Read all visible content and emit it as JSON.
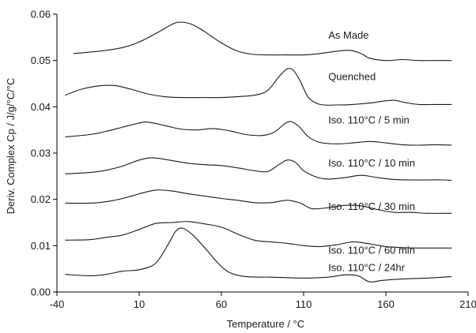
{
  "chart_data": {
    "type": "line",
    "title": "",
    "xlabel": "Temperature / °C",
    "ylabel": "Deriv. Complex Cp / J/g/°C/°C",
    "xlim": [
      -40,
      210
    ],
    "ylim": [
      0,
      0.06
    ],
    "x_ticks": [
      -40,
      10,
      60,
      110,
      160,
      210
    ],
    "x_tick_labels": [
      "-40",
      "10",
      "60",
      "110",
      "160",
      "210"
    ],
    "y_ticks": [
      0,
      0.01,
      0.02,
      0.03,
      0.04,
      0.05,
      0.06
    ],
    "y_tick_labels": [
      "0.00",
      "0.01",
      "0.02",
      "0.03",
      "0.04",
      "0.05",
      "0.06"
    ],
    "grid": false,
    "legend": "inline labels at right",
    "series": [
      {
        "name": "As Made",
        "label_at": [
          125,
          0.0547
        ],
        "points": [
          [
            -30,
            0.0515
          ],
          [
            -20,
            0.0518
          ],
          [
            -10,
            0.0522
          ],
          [
            0,
            0.0528
          ],
          [
            10,
            0.054
          ],
          [
            20,
            0.0558
          ],
          [
            30,
            0.0578
          ],
          [
            35,
            0.0583
          ],
          [
            42,
            0.0578
          ],
          [
            50,
            0.0562
          ],
          [
            60,
            0.0538
          ],
          [
            70,
            0.052
          ],
          [
            80,
            0.0513
          ],
          [
            90,
            0.0512
          ],
          [
            100,
            0.0512
          ],
          [
            110,
            0.0512
          ],
          [
            120,
            0.0515
          ],
          [
            130,
            0.052
          ],
          [
            138,
            0.0522
          ],
          [
            145,
            0.0515
          ],
          [
            150,
            0.0505
          ],
          [
            160,
            0.05
          ],
          [
            170,
            0.0502
          ],
          [
            180,
            0.05
          ],
          [
            190,
            0.05
          ],
          [
            200,
            0.05
          ]
        ]
      },
      {
        "name": "Quenched",
        "label_at": [
          125,
          0.0458
        ],
        "points": [
          [
            -35,
            0.0425
          ],
          [
            -25,
            0.0438
          ],
          [
            -15,
            0.0445
          ],
          [
            -5,
            0.0446
          ],
          [
            5,
            0.0438
          ],
          [
            15,
            0.0428
          ],
          [
            25,
            0.0422
          ],
          [
            35,
            0.042
          ],
          [
            50,
            0.042
          ],
          [
            60,
            0.042
          ],
          [
            70,
            0.0422
          ],
          [
            80,
            0.0425
          ],
          [
            88,
            0.0435
          ],
          [
            95,
            0.0465
          ],
          [
            100,
            0.0482
          ],
          [
            104,
            0.0478
          ],
          [
            108,
            0.0455
          ],
          [
            113,
            0.042
          ],
          [
            120,
            0.0405
          ],
          [
            130,
            0.0404
          ],
          [
            140,
            0.0405
          ],
          [
            150,
            0.0408
          ],
          [
            158,
            0.0412
          ],
          [
            165,
            0.0414
          ],
          [
            172,
            0.0409
          ],
          [
            180,
            0.0405
          ],
          [
            190,
            0.0405
          ],
          [
            200,
            0.0405
          ]
        ]
      },
      {
        "name": "Iso. 110°C / 5 min",
        "label_at": [
          125,
          0.0364
        ],
        "points": [
          [
            -35,
            0.0335
          ],
          [
            -20,
            0.034
          ],
          [
            -10,
            0.0347
          ],
          [
            0,
            0.0356
          ],
          [
            10,
            0.0365
          ],
          [
            15,
            0.0367
          ],
          [
            25,
            0.036
          ],
          [
            35,
            0.0352
          ],
          [
            45,
            0.035
          ],
          [
            55,
            0.0353
          ],
          [
            65,
            0.0348
          ],
          [
            75,
            0.034
          ],
          [
            85,
            0.0338
          ],
          [
            92,
            0.0345
          ],
          [
            98,
            0.0362
          ],
          [
            102,
            0.0368
          ],
          [
            107,
            0.0358
          ],
          [
            113,
            0.0335
          ],
          [
            120,
            0.0323
          ],
          [
            130,
            0.032
          ],
          [
            140,
            0.0322
          ],
          [
            150,
            0.0325
          ],
          [
            160,
            0.0322
          ],
          [
            170,
            0.0318
          ],
          [
            180,
            0.0317
          ],
          [
            190,
            0.0318
          ],
          [
            200,
            0.0317
          ]
        ]
      },
      {
        "name": "Iso. 110°C / 10 min",
        "label_at": [
          125,
          0.0271
        ],
        "points": [
          [
            -35,
            0.0255
          ],
          [
            -20,
            0.0258
          ],
          [
            -10,
            0.0263
          ],
          [
            0,
            0.0272
          ],
          [
            10,
            0.0285
          ],
          [
            18,
            0.029
          ],
          [
            28,
            0.0285
          ],
          [
            40,
            0.0278
          ],
          [
            50,
            0.0275
          ],
          [
            60,
            0.0273
          ],
          [
            70,
            0.0268
          ],
          [
            80,
            0.0262
          ],
          [
            88,
            0.026
          ],
          [
            95,
            0.0275
          ],
          [
            100,
            0.0285
          ],
          [
            105,
            0.028
          ],
          [
            110,
            0.0262
          ],
          [
            118,
            0.0248
          ],
          [
            125,
            0.0244
          ],
          [
            135,
            0.0247
          ],
          [
            145,
            0.0252
          ],
          [
            155,
            0.0247
          ],
          [
            165,
            0.0243
          ],
          [
            175,
            0.0242
          ],
          [
            185,
            0.0242
          ],
          [
            195,
            0.0242
          ],
          [
            200,
            0.0241
          ]
        ]
      },
      {
        "name": "Iso. 110°C / 30 min",
        "label_at": [
          125,
          0.0177
        ],
        "points": [
          [
            -35,
            0.0192
          ],
          [
            -20,
            0.0192
          ],
          [
            -10,
            0.0195
          ],
          [
            0,
            0.0202
          ],
          [
            10,
            0.0212
          ],
          [
            20,
            0.022
          ],
          [
            30,
            0.0218
          ],
          [
            40,
            0.0212
          ],
          [
            50,
            0.0207
          ],
          [
            60,
            0.0202
          ],
          [
            70,
            0.0198
          ],
          [
            80,
            0.0193
          ],
          [
            90,
            0.0193
          ],
          [
            100,
            0.0198
          ],
          [
            108,
            0.0192
          ],
          [
            115,
            0.018
          ],
          [
            125,
            0.0182
          ],
          [
            135,
            0.0187
          ],
          [
            145,
            0.0186
          ],
          [
            155,
            0.0178
          ],
          [
            165,
            0.0172
          ],
          [
            175,
            0.0172
          ],
          [
            185,
            0.017
          ],
          [
            200,
            0.017
          ]
        ]
      },
      {
        "name": "Iso. 110°C / 60 min",
        "label_at": [
          125,
          0.0083
        ],
        "points": [
          [
            -35,
            0.0112
          ],
          [
            -20,
            0.0113
          ],
          [
            -10,
            0.0118
          ],
          [
            0,
            0.0123
          ],
          [
            10,
            0.0135
          ],
          [
            20,
            0.0148
          ],
          [
            30,
            0.015
          ],
          [
            40,
            0.0152
          ],
          [
            50,
            0.0147
          ],
          [
            60,
            0.014
          ],
          [
            70,
            0.0125
          ],
          [
            80,
            0.0112
          ],
          [
            90,
            0.0108
          ],
          [
            100,
            0.0105
          ],
          [
            110,
            0.01
          ],
          [
            120,
            0.0098
          ],
          [
            130,
            0.0102
          ],
          [
            140,
            0.0108
          ],
          [
            150,
            0.0104
          ],
          [
            160,
            0.0098
          ],
          [
            170,
            0.0096
          ],
          [
            180,
            0.0095
          ],
          [
            200,
            0.0095
          ]
        ]
      },
      {
        "name": "Iso. 110°C / 24hr",
        "label_at": [
          125,
          0.0045
        ],
        "points": [
          [
            -35,
            0.0038
          ],
          [
            -20,
            0.0035
          ],
          [
            -10,
            0.0038
          ],
          [
            0,
            0.0045
          ],
          [
            10,
            0.0048
          ],
          [
            20,
            0.0062
          ],
          [
            28,
            0.0105
          ],
          [
            32,
            0.013
          ],
          [
            36,
            0.0138
          ],
          [
            42,
            0.0125
          ],
          [
            50,
            0.0095
          ],
          [
            58,
            0.0062
          ],
          [
            65,
            0.0042
          ],
          [
            75,
            0.0033
          ],
          [
            90,
            0.0032
          ],
          [
            110,
            0.003
          ],
          [
            125,
            0.0032
          ],
          [
            135,
            0.0037
          ],
          [
            143,
            0.0035
          ],
          [
            150,
            0.0022
          ],
          [
            158,
            0.0025
          ],
          [
            170,
            0.0028
          ],
          [
            185,
            0.003
          ],
          [
            200,
            0.0033
          ]
        ]
      }
    ]
  }
}
